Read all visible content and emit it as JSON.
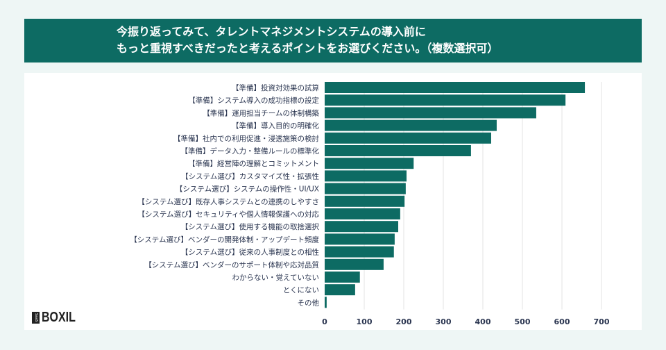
{
  "title_lines": [
    "今振り返ってみて、タレントマネジメントシステムの導入前に",
    "もっと重視すべきだったと考えるポイントをお選びください。（複数選択可）"
  ],
  "logo": {
    "badge": "SaaS",
    "text": "BOXIL"
  },
  "colors": {
    "bar": "#0d6b63",
    "header": "#0d6b63",
    "grid": "#e3e3e3"
  },
  "chart_data": {
    "type": "bar",
    "orientation": "horizontal",
    "categories": [
      "【準備】投資対効果の試算",
      "【準備】システム導入の成功指標の設定",
      "【準備】運用担当チームの体制構築",
      "【準備】導入目的の明確化",
      "【準備】社内での利用促進・浸透施策の検討",
      "【準備】データ入力・整備ルールの標準化",
      "【準備】経営陣の理解とコミットメント",
      "【システム選び】カスタマイズ性・拡張性",
      "【システム選び】システムの操作性・UI/UX",
      "【システム選び】既存人事システムとの連携のしやすさ",
      "【システム選び】セキュリティや個人情報保護への対応",
      "【システム選び】使用する機能の取捨選択",
      "【システム選び】ベンダーの開発体制・アップデート頻度",
      "【システム選び】従来の人事制度との相性",
      "【システム選び】ベンダーのサポート体制や応対品質",
      "わからない・覚えていない",
      "とくにない",
      "その他"
    ],
    "values": [
      658,
      609,
      535,
      435,
      421,
      370,
      225,
      207,
      205,
      202,
      191,
      186,
      177,
      175,
      149,
      89,
      77,
      5
    ],
    "xlim": [
      0,
      700
    ],
    "xticks": [
      "0",
      "100",
      "200",
      "300",
      "400",
      "500",
      "600",
      "700"
    ],
    "grid": true
  }
}
